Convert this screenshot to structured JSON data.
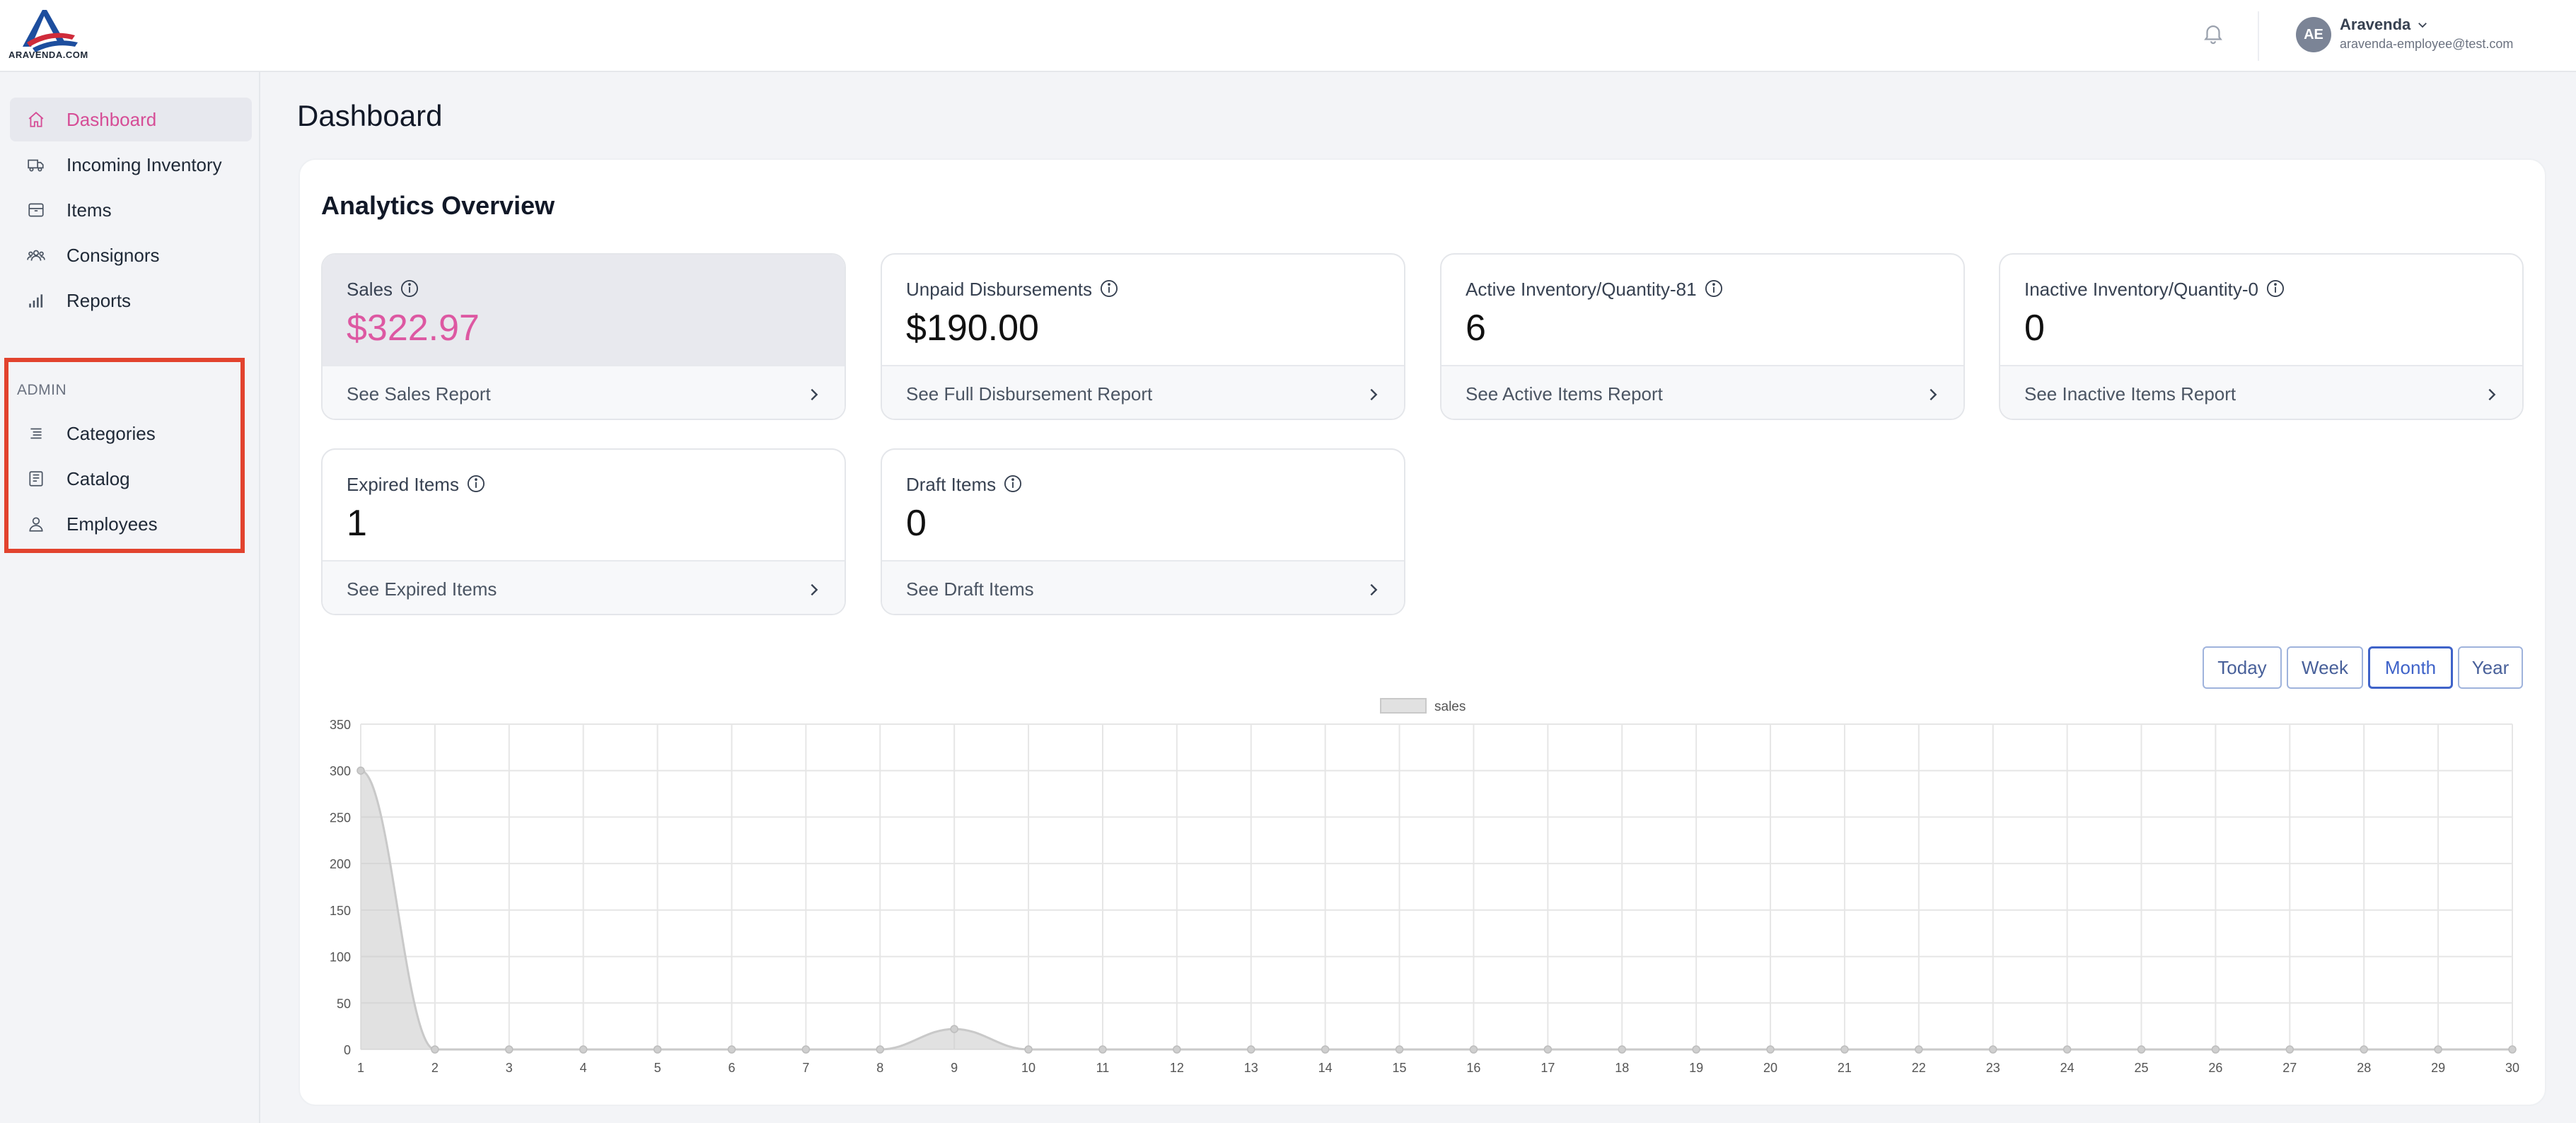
{
  "header": {
    "logo_text": "ARAVENDA.COM",
    "bell_icon": "bell-icon",
    "user": {
      "initials": "AE",
      "name": "Aravenda",
      "email": "aravenda-employee@test.com"
    }
  },
  "sidebar": {
    "items": [
      {
        "label": "Dashboard",
        "icon": "home-icon"
      },
      {
        "label": "Incoming Inventory",
        "icon": "truck-icon"
      },
      {
        "label": "Items",
        "icon": "box-icon"
      },
      {
        "label": "Consignors",
        "icon": "users-icon"
      },
      {
        "label": "Reports",
        "icon": "bar-chart-icon"
      }
    ],
    "admin": {
      "title": "ADMIN",
      "items": [
        {
          "label": "Categories",
          "icon": "list-icon"
        },
        {
          "label": "Catalog",
          "icon": "catalog-icon"
        },
        {
          "label": "Employees",
          "icon": "user-icon"
        }
      ]
    }
  },
  "main": {
    "page_title": "Dashboard",
    "panel_title": "Analytics Overview",
    "cards": [
      {
        "label": "Sales",
        "value": "$322.97",
        "link": "See Sales Report"
      },
      {
        "label": "Unpaid Disbursements",
        "value": "$190.00",
        "link": "See Full Disbursement Report"
      },
      {
        "label": "Active Inventory/Quantity-81",
        "value": "6",
        "link": "See Active Items Report"
      },
      {
        "label": "Inactive Inventory/Quantity-0",
        "value": "0",
        "link": "See Inactive Items Report"
      },
      {
        "label": "Expired Items",
        "value": "1",
        "link": "See Expired Items"
      },
      {
        "label": "Draft Items",
        "value": "0",
        "link": "See Draft Items"
      }
    ],
    "range_buttons": [
      "Today",
      "Week",
      "Month",
      "Year"
    ],
    "active_range": "Month"
  },
  "colors": {
    "accent_pink": "#dd58a2",
    "active_blue": "#3f63c9",
    "admin_border": "#e2432e"
  },
  "chart_data": {
    "type": "area",
    "x": [
      1,
      2,
      3,
      4,
      5,
      6,
      7,
      8,
      9,
      10,
      11,
      12,
      13,
      14,
      15,
      16,
      17,
      18,
      19,
      20,
      21,
      22,
      23,
      24,
      25,
      26,
      27,
      28,
      29,
      30
    ],
    "series": [
      {
        "name": "sales",
        "values": [
          300,
          0,
          0,
          0,
          0,
          0,
          0,
          0,
          22,
          0,
          0,
          0,
          0,
          0,
          0,
          0,
          0,
          0,
          0,
          0,
          0,
          0,
          0,
          0,
          0,
          0,
          0,
          0,
          0,
          0
        ]
      }
    ],
    "ylim": [
      0,
      350
    ],
    "yticks": [
      0,
      50,
      100,
      150,
      200,
      250,
      300,
      350
    ],
    "grid": true,
    "legend": "top-center"
  }
}
